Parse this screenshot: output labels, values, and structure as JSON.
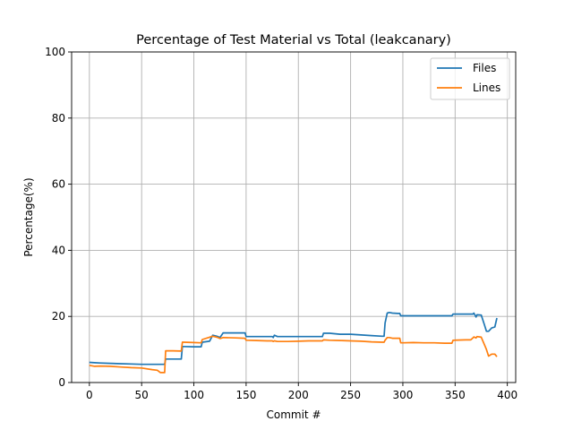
{
  "chart_data": {
    "type": "line",
    "title": "Percentage of Test Material vs Total (leakcanary)",
    "xlabel": "Commit #",
    "ylabel": "Percentage(%)",
    "xlim": [
      -17,
      408
    ],
    "ylim": [
      0,
      100
    ],
    "xticks": [
      0,
      50,
      100,
      150,
      200,
      250,
      300,
      350,
      400
    ],
    "yticks": [
      0,
      20,
      40,
      60,
      80,
      100
    ],
    "grid": true,
    "legend_position": "top-right",
    "series": [
      {
        "name": "Files",
        "color": "#1f77b4",
        "x": [
          0,
          5,
          10,
          20,
          30,
          40,
          50,
          60,
          65,
          72,
          73,
          80,
          88,
          89,
          90,
          100,
          107,
          108,
          115,
          118,
          122,
          125,
          128,
          140,
          149,
          150,
          160,
          170,
          175,
          176,
          177,
          180,
          190,
          200,
          210,
          220,
          223,
          224,
          230,
          240,
          250,
          260,
          270,
          280,
          282,
          283,
          285,
          287,
          290,
          295,
          297,
          298,
          300,
          310,
          320,
          330,
          340,
          345,
          347,
          348,
          360,
          365,
          367,
          368,
          370,
          371,
          375,
          378,
          380,
          382,
          385,
          388,
          390
        ],
        "y": [
          6.1,
          6.0,
          5.9,
          5.8,
          5.7,
          5.6,
          5.5,
          5.5,
          5.5,
          5.5,
          7.1,
          7.1,
          7.1,
          10.9,
          10.9,
          10.8,
          10.8,
          12.2,
          12.5,
          14.3,
          14.0,
          13.6,
          15.0,
          15.0,
          15.0,
          13.9,
          13.9,
          13.9,
          13.9,
          13.6,
          14.3,
          13.9,
          13.9,
          13.9,
          13.9,
          13.9,
          13.9,
          14.9,
          14.9,
          14.6,
          14.6,
          14.4,
          14.2,
          14.0,
          14.0,
          18.0,
          21.0,
          21.2,
          21.0,
          20.9,
          20.9,
          20.2,
          20.2,
          20.2,
          20.2,
          20.2,
          20.2,
          20.2,
          20.2,
          20.7,
          20.7,
          20.7,
          20.7,
          21.0,
          19.8,
          20.5,
          20.4,
          17.5,
          15.5,
          15.5,
          16.5,
          16.8,
          19.5
        ]
      },
      {
        "name": "Lines",
        "color": "#ff7f0e",
        "x": [
          0,
          5,
          10,
          20,
          30,
          40,
          50,
          60,
          65,
          68,
          72,
          73,
          80,
          88,
          89,
          90,
          100,
          107,
          108,
          115,
          118,
          122,
          125,
          128,
          140,
          149,
          150,
          160,
          170,
          175,
          176,
          177,
          180,
          190,
          200,
          210,
          220,
          223,
          224,
          230,
          240,
          250,
          260,
          270,
          280,
          282,
          283,
          285,
          287,
          290,
          295,
          297,
          298,
          300,
          310,
          320,
          330,
          340,
          345,
          347,
          348,
          360,
          365,
          367,
          368,
          370,
          371,
          375,
          378,
          380,
          382,
          385,
          388,
          390
        ],
        "y": [
          5.2,
          4.9,
          5.0,
          4.9,
          4.7,
          4.5,
          4.4,
          3.9,
          3.7,
          3.0,
          3.0,
          9.6,
          9.6,
          9.5,
          12.2,
          12.2,
          12.1,
          12.0,
          13.0,
          13.7,
          14.0,
          13.7,
          13.3,
          13.6,
          13.5,
          13.4,
          12.8,
          12.7,
          12.6,
          12.6,
          12.4,
          12.6,
          12.4,
          12.4,
          12.5,
          12.6,
          12.6,
          12.6,
          12.9,
          12.8,
          12.7,
          12.6,
          12.5,
          12.3,
          12.2,
          12.2,
          12.8,
          13.6,
          13.6,
          13.4,
          13.4,
          13.4,
          12.0,
          12.0,
          12.1,
          12.0,
          12.0,
          11.9,
          11.9,
          11.9,
          12.8,
          12.9,
          12.9,
          13.5,
          13.8,
          13.5,
          13.9,
          13.7,
          11.5,
          10.0,
          8.0,
          8.6,
          8.6,
          7.8
        ]
      }
    ]
  }
}
